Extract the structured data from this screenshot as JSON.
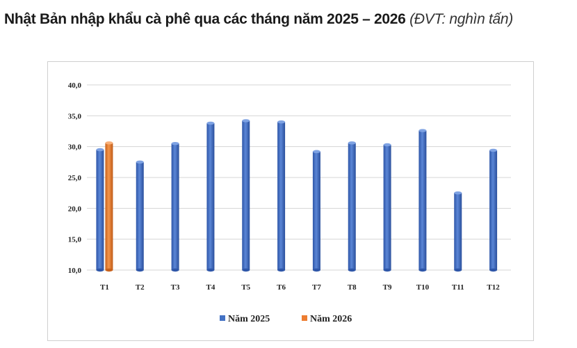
{
  "chart_data": {
    "type": "bar",
    "title": "Nhật Bản nhập khẩu cà phê qua các tháng năm 2025 – 2026",
    "unit": "(ĐVT: nghìn tấn)",
    "categories": [
      "T1",
      "T2",
      "T3",
      "T4",
      "T5",
      "T6",
      "T7",
      "T8",
      "T9",
      "T10",
      "T11",
      "T12"
    ],
    "series": [
      {
        "name": "Năm 2025",
        "color": "#4472C4",
        "values": [
          29.5,
          27.5,
          30.5,
          33.8,
          34.2,
          34.0,
          29.2,
          30.6,
          30.3,
          32.6,
          22.5,
          29.4
        ]
      },
      {
        "name": "Năm 2026",
        "color": "#ED7D31",
        "values": [
          30.6,
          null,
          null,
          null,
          null,
          null,
          null,
          null,
          null,
          null,
          null,
          null
        ]
      }
    ],
    "ylim": [
      10,
      40
    ],
    "yticks": [
      "10,0",
      "15,0",
      "20,0",
      "25,0",
      "30,0",
      "35,0",
      "40,0"
    ],
    "grid": true,
    "legend": "bottom"
  }
}
